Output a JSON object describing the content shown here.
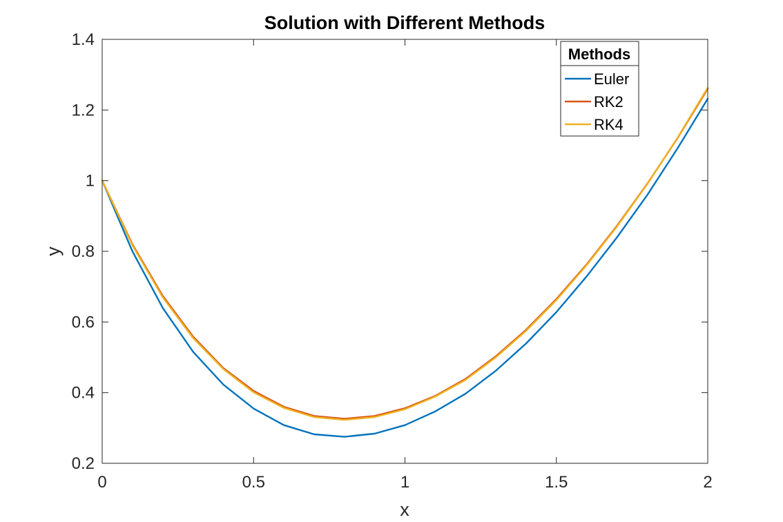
{
  "chart_data": {
    "type": "line",
    "title": "Solution with Different Methods",
    "xlabel": "x",
    "ylabel": "y",
    "xlim": [
      0,
      2
    ],
    "ylim": [
      0.2,
      1.4
    ],
    "xticks": [
      0,
      0.5,
      1,
      1.5,
      2
    ],
    "xtick_labels": [
      "0",
      "0.5",
      "1",
      "1.5",
      "2"
    ],
    "yticks": [
      0.2,
      0.4,
      0.6,
      0.8,
      1.0,
      1.2,
      1.4
    ],
    "ytick_labels": [
      "0.2",
      "0.4",
      "0.6",
      "0.8",
      "1",
      "1.2",
      "1.4"
    ],
    "grid": false,
    "legend": {
      "title": "Methods",
      "placement": "top-right"
    },
    "x": [
      0,
      0.1,
      0.2,
      0.3,
      0.4,
      0.5,
      0.6,
      0.7,
      0.8,
      0.9,
      1.0,
      1.1,
      1.2,
      1.3,
      1.4,
      1.5,
      1.6,
      1.7,
      1.8,
      1.9,
      2.0
    ],
    "series": [
      {
        "name": "Euler",
        "color": "#0072BD",
        "values": [
          1.0,
          0.8,
          0.64,
          0.516,
          0.423,
          0.355,
          0.308,
          0.282,
          0.275,
          0.284,
          0.308,
          0.347,
          0.397,
          0.462,
          0.539,
          0.628,
          0.729,
          0.839,
          0.959,
          1.091,
          1.232
        ]
      },
      {
        "name": "RK2",
        "color": "#D95319",
        "values": [
          1.0,
          0.82,
          0.674,
          0.559,
          0.47,
          0.405,
          0.36,
          0.334,
          0.326,
          0.334,
          0.356,
          0.391,
          0.439,
          0.503,
          0.578,
          0.665,
          0.763,
          0.872,
          0.991,
          1.12,
          1.26
        ]
      },
      {
        "name": "RK4",
        "color": "#EDB120",
        "values": [
          1.0,
          0.817,
          0.67,
          0.555,
          0.467,
          0.401,
          0.357,
          0.331,
          0.323,
          0.331,
          0.353,
          0.389,
          0.436,
          0.5,
          0.575,
          0.662,
          0.761,
          0.87,
          0.99,
          1.121,
          1.263
        ]
      }
    ]
  }
}
